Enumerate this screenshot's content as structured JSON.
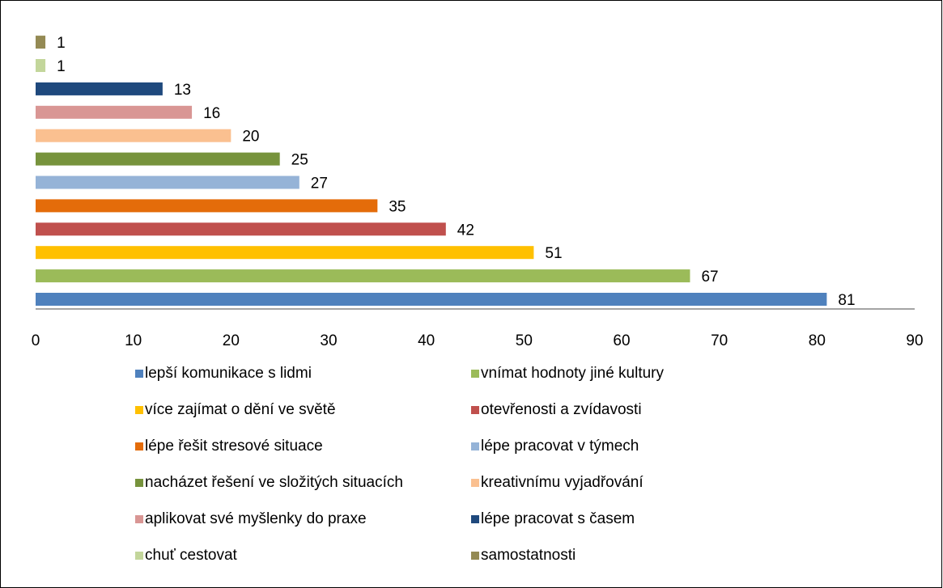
{
  "chart_data": {
    "type": "bar",
    "orientation": "horizontal",
    "series": [
      {
        "name": "lepší komunikace s lidmi",
        "color": "#4f81bd",
        "values": [
          81
        ]
      },
      {
        "name": "vnímat hodnoty jiné kultury",
        "color": "#9bbb59",
        "values": [
          67
        ]
      },
      {
        "name": "více zajímat o dění ve světě",
        "color": "#ffc000",
        "values": [
          51
        ]
      },
      {
        "name": "otevřenosti a zvídavosti",
        "color": "#c0504d",
        "values": [
          42
        ]
      },
      {
        "name": "lépe řešit stresové situace",
        "color": "#e46c0a",
        "values": [
          35
        ]
      },
      {
        "name": "lépe pracovat v týmech",
        "color": "#95b3d7",
        "values": [
          27
        ]
      },
      {
        "name": "nacházet řešení ve složitých situacích",
        "color": "#77933c",
        "values": [
          25
        ]
      },
      {
        "name": "kreativnímu vyjadřování",
        "color": "#fac090",
        "values": [
          20
        ]
      },
      {
        "name": "aplikovat své myšlenky do praxe",
        "color": "#d99694",
        "values": [
          16
        ]
      },
      {
        "name": "lépe pracovat s časem",
        "color": "#1f497d",
        "values": [
          13
        ]
      },
      {
        "name": "chuť cestovat",
        "color": "#c3d69b",
        "values": [
          1
        ]
      },
      {
        "name": "samostatnosti",
        "color": "#948a54",
        "values": [
          1
        ]
      }
    ],
    "xlim": [
      0,
      90
    ],
    "xticks": [
      0,
      10,
      20,
      30,
      40,
      50,
      60,
      70,
      80,
      90
    ],
    "grid": false,
    "legend": "bottom"
  }
}
